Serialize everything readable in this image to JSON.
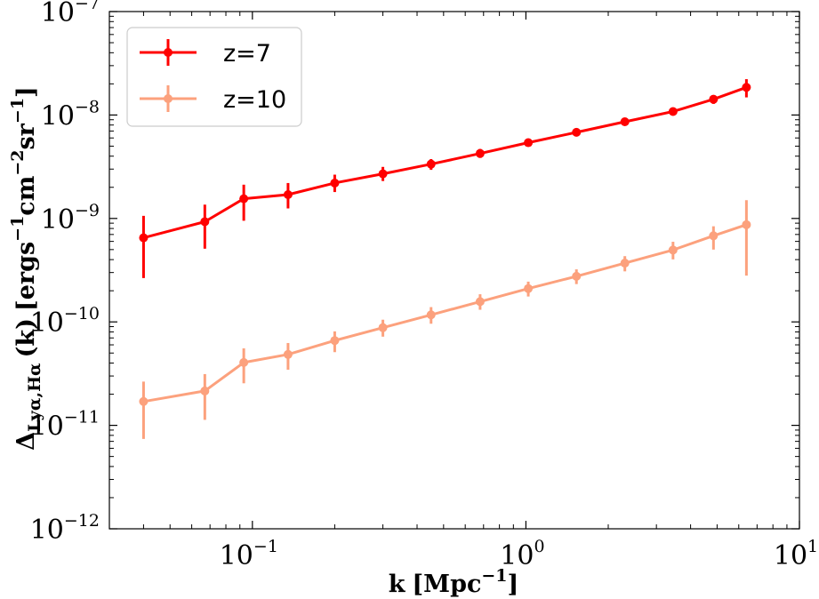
{
  "chart_data": {
    "type": "line",
    "xscale": "log",
    "yscale": "log",
    "xlim": [
      0.03,
      10
    ],
    "ylim": [
      1e-12,
      1e-07
    ],
    "xlabel": {
      "main": "k",
      "unit_open": "[Mpc",
      "unit_exp": "−1",
      "unit_close": "]"
    },
    "ylabel": {
      "main": "Δ",
      "sub": "Lyα,Hα",
      "arg": "(k)",
      "unit_open": "[ergs",
      "e1": "−1",
      "mid": "cm",
      "e2": "−2",
      "mid2": "sr",
      "e3": "−1",
      "unit_close": "]"
    },
    "xticks": [
      {
        "value": 0.1,
        "base": "10",
        "exp": "−1"
      },
      {
        "value": 1,
        "base": "10",
        "exp": "0"
      },
      {
        "value": 10,
        "base": "10",
        "exp": "1"
      }
    ],
    "yticks": [
      {
        "value": 1e-12,
        "base": "10",
        "exp": "−12"
      },
      {
        "value": 1e-11,
        "base": "10",
        "exp": "−11"
      },
      {
        "value": 1e-10,
        "base": "10",
        "exp": "−10"
      },
      {
        "value": 1e-09,
        "base": "10",
        "exp": "−9"
      },
      {
        "value": 1e-08,
        "base": "10",
        "exp": "−8"
      },
      {
        "value": 1e-07,
        "base": "10",
        "exp": "−7"
      }
    ],
    "x": [
      0.04,
      0.067,
      0.093,
      0.135,
      0.2,
      0.3,
      0.45,
      0.68,
      1.02,
      1.53,
      2.3,
      3.45,
      4.85,
      6.4
    ],
    "series": [
      {
        "name": "z=7",
        "color": "#ff0000",
        "values": [
          6.5e-10,
          9.3e-10,
          1.55e-09,
          1.7e-09,
          2.2e-09,
          2.7e-09,
          3.35e-09,
          4.25e-09,
          5.4e-09,
          6.8e-09,
          8.6e-09,
          1.08e-08,
          1.42e-08,
          1.85e-08
        ],
        "err_low": [
          2.65e-10,
          5.1e-10,
          9.5e-10,
          1.25e-09,
          1.8e-09,
          2.3e-09,
          2.95e-09,
          3.85e-09,
          4.95e-09,
          6.3e-09,
          8.05e-09,
          9.95e-09,
          1.28e-08,
          1.48e-08
        ],
        "err_high": [
          1.06e-09,
          1.36e-09,
          2.12e-09,
          2.2e-09,
          2.65e-09,
          3.15e-09,
          3.75e-09,
          4.7e-09,
          5.85e-09,
          7.3e-09,
          9.2e-09,
          1.17e-08,
          1.55e-08,
          2.22e-08
        ]
      },
      {
        "name": "z=10",
        "color": "#fca17d",
        "values": [
          1.7e-11,
          2.15e-11,
          4.05e-11,
          4.85e-11,
          6.6e-11,
          8.8e-11,
          1.17e-10,
          1.57e-10,
          2.1e-10,
          2.76e-10,
          3.7e-10,
          4.95e-10,
          6.8e-10,
          8.7e-10
        ],
        "err_low": [
          7.4e-12,
          1.13e-11,
          2.55e-11,
          3.45e-11,
          5.1e-11,
          7.2e-11,
          9.6e-11,
          1.31e-10,
          1.76e-10,
          2.32e-10,
          3.08e-10,
          4.02e-10,
          5e-10,
          2.8e-10
        ],
        "err_high": [
          2.65e-11,
          3.13e-11,
          5.55e-11,
          6.25e-11,
          8.1e-11,
          1.05e-10,
          1.39e-10,
          1.85e-10,
          2.45e-10,
          3.22e-10,
          4.32e-10,
          5.95e-10,
          8.4e-10,
          1.5e-09
        ]
      }
    ],
    "legend": {
      "position": "top-left",
      "entries": [
        "z=7",
        "z=10"
      ]
    }
  }
}
